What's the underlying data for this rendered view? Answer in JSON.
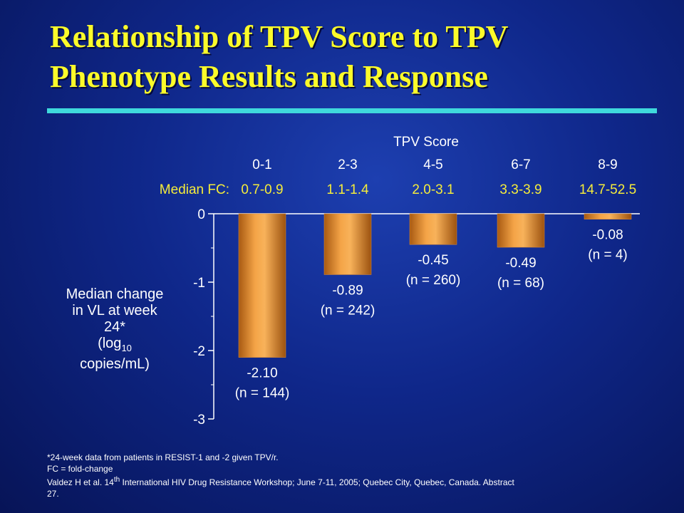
{
  "slide": {
    "title_line1": "Relationship of TPV Score to TPV",
    "title_line2": "Phenotype Results and Response"
  },
  "chart_data": {
    "type": "bar",
    "header": "TPV Score",
    "fc_label": "Median FC:",
    "categories": [
      "0-1",
      "2-3",
      "4-5",
      "6-7",
      "8-9"
    ],
    "median_fc": [
      "0.7-0.9",
      "1.1-1.4",
      "2.0-3.1",
      "3.3-3.9",
      "14.7-52.5"
    ],
    "values": [
      -2.1,
      -0.89,
      -0.45,
      -0.49,
      -0.08
    ],
    "value_labels": [
      "-2.10",
      "-0.89",
      "-0.45",
      "-0.49",
      "-0.08"
    ],
    "n_labels": [
      "(n = 144)",
      "(n = 242)",
      "(n = 260)",
      "(n = 68)",
      "(n = 4)"
    ],
    "yticks": [
      0,
      -1,
      -2,
      -3
    ],
    "ytick_labels": [
      "0",
      "-1",
      "-2",
      "-3"
    ],
    "ylim": [
      -3,
      0
    ],
    "ylabel": {
      "line1": "Median change",
      "line2": "in VL at week",
      "line3": "24*",
      "line4_pre": "(log",
      "line4_sub": "10",
      "line5": "copies/mL)"
    },
    "bar_color": "#e8902e",
    "grid": false
  },
  "footnotes": {
    "line1": "*24-week data from patients in RESIST-1 and -2 given TPV/r.",
    "line2": "FC = fold-change",
    "line3_pre": "Valdez H et al. 14",
    "line3_sup": "th",
    "line3_post": " International HIV Drug Resistance Workshop; June 7-11, 2005; Quebec City, Quebec, Canada. Abstract",
    "line4": "27."
  }
}
